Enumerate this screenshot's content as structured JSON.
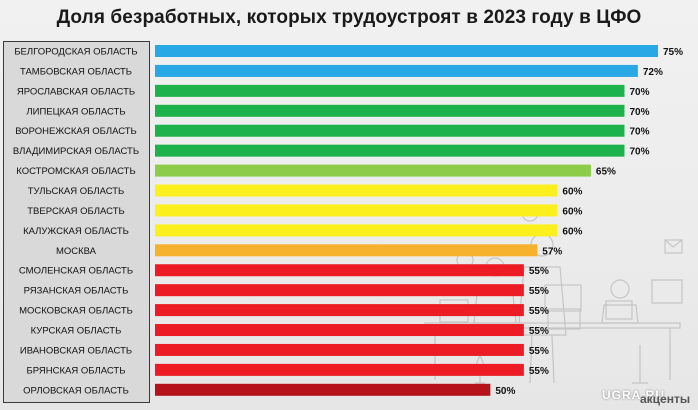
{
  "chart_data": {
    "type": "bar",
    "orientation": "horizontal",
    "title": "Доля безработных, которых трудоустроят в 2023 году в ЦФО",
    "categories": [
      "БЕЛГОРОДСКАЯ ОБЛАСТЬ",
      "ТАМБОВСКАЯ ОБЛАСТЬ",
      "ЯРОСЛАВСКАЯ ОБЛАСТЬ",
      "ЛИПЕЦКАЯ ОБЛАСТЬ",
      "ВОРОНЕЖСКАЯ ОБЛАСТЬ",
      "ВЛАДИМИРСКАЯ ОБЛАСТЬ",
      "КОСТРОМСКАЯ ОБЛАСТЬ",
      "ТУЛЬСКАЯ ОБЛАСТЬ",
      "ТВЕРСКАЯ ОБЛАСТЬ",
      "КАЛУЖСКАЯ ОБЛАСТЬ",
      "МОСКВА",
      "СМОЛЕНСКАЯ ОБЛАСТЬ",
      "РЯЗАНСКАЯ ОБЛАСТЬ",
      "МОСКОВСКАЯ ОБЛАСТЬ",
      "КУРСКАЯ ОБЛАСТЬ",
      "ИВАНОВСКАЯ ОБЛАСТЬ",
      "БРЯНСКАЯ ОБЛАСТЬ",
      "ОРЛОВСКАЯ ОБЛАСТЬ"
    ],
    "values": [
      75,
      72,
      70,
      70,
      70,
      70,
      65,
      60,
      60,
      60,
      57,
      55,
      55,
      55,
      55,
      55,
      55,
      50
    ],
    "value_labels": [
      "75%",
      "72%",
      "70%",
      "70%",
      "70%",
      "70%",
      "65%",
      "60%",
      "60%",
      "60%",
      "57%",
      "55%",
      "55%",
      "55%",
      "55%",
      "55%",
      "55%",
      "50%"
    ],
    "colors": [
      "#29a8e6",
      "#29a8e6",
      "#1db24b",
      "#1db24b",
      "#1db24b",
      "#1db24b",
      "#8ccc4a",
      "#fbf01e",
      "#fbf01e",
      "#fbf01e",
      "#f6b12d",
      "#ed1c24",
      "#ed1c24",
      "#ed1c24",
      "#ed1c24",
      "#ed1c24",
      "#ed1c24",
      "#b5121b"
    ],
    "xlabel": "",
    "ylabel": "",
    "xlim": [
      0,
      75
    ],
    "grid": false,
    "legend": "none"
  },
  "watermark": {
    "left": "UGRA.RU",
    "right": "акценты"
  }
}
